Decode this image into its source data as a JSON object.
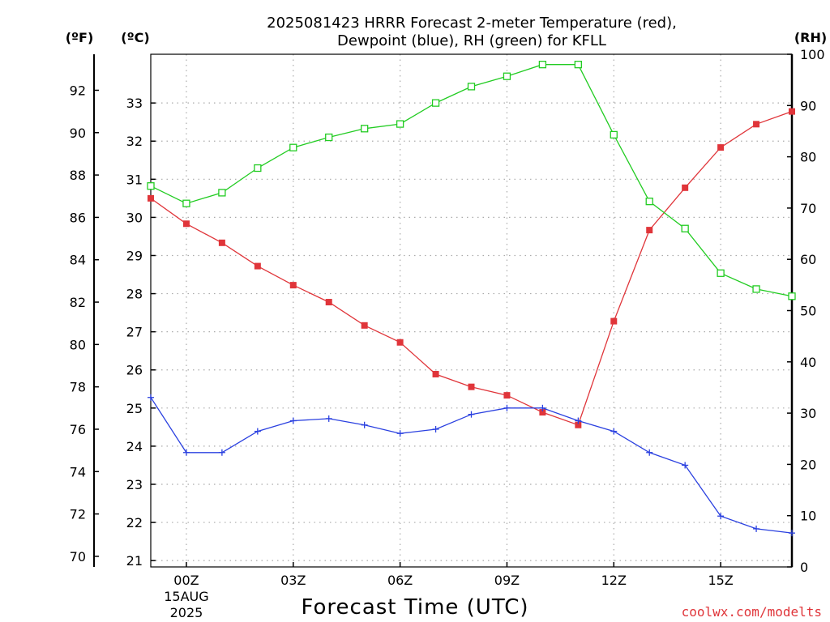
{
  "chart_data": {
    "type": "line",
    "title_line1": "2025081423 HRRR Forecast 2-meter Temperature (red),",
    "title_line2": "Dewpoint (blue), RH (green) for KFLL",
    "left_unit_f": "(ºF)",
    "left_unit_c": "(ºC)",
    "right_unit": "(RH)",
    "xlabel": "Forecast Time (UTC)",
    "credit": "coolwx.com/modelts",
    "x_hours": [
      -1,
      0,
      1,
      2,
      3,
      4,
      5,
      6,
      7,
      8,
      9,
      10,
      11,
      12,
      13,
      14,
      15,
      16,
      17
    ],
    "x_range": [
      -1,
      17
    ],
    "x_ticks": [
      {
        "hour": 0,
        "label": "00Z",
        "sub1": "15AUG",
        "sub2": "2025"
      },
      {
        "hour": 3,
        "label": "03Z"
      },
      {
        "hour": 6,
        "label": "06Z"
      },
      {
        "hour": 9,
        "label": "09Z"
      },
      {
        "hour": 12,
        "label": "12Z"
      },
      {
        "hour": 15,
        "label": "15Z"
      }
    ],
    "y_f_range": [
      69.5,
      93.7
    ],
    "y_f_ticks": [
      70,
      72,
      74,
      76,
      78,
      80,
      82,
      84,
      86,
      88,
      90,
      92
    ],
    "y_c_ticks": [
      21,
      22,
      23,
      24,
      25,
      26,
      27,
      28,
      29,
      30,
      31,
      32,
      33
    ],
    "y_rh_range": [
      0,
      100
    ],
    "y_rh_ticks": [
      0,
      10,
      20,
      30,
      40,
      50,
      60,
      70,
      80,
      90,
      100
    ],
    "series": [
      {
        "name": "Temperature",
        "color": "#e0353a",
        "marker": "filled-square",
        "units": "F",
        "values": [
          86.9,
          85.7,
          84.8,
          83.7,
          82.8,
          82.0,
          80.9,
          80.1,
          78.6,
          78.0,
          77.6,
          76.8,
          76.2,
          81.1,
          85.4,
          87.4,
          89.3,
          90.4,
          91.0
        ]
      },
      {
        "name": "Dewpoint",
        "color": "#2a40e0",
        "marker": "plus",
        "units": "F",
        "values": [
          77.5,
          74.9,
          74.9,
          75.9,
          76.4,
          76.5,
          76.2,
          75.8,
          76.0,
          76.7,
          77.0,
          77.0,
          76.4,
          75.9,
          74.9,
          74.3,
          71.9,
          71.3,
          71.1
        ]
      },
      {
        "name": "RH",
        "color": "#22cc22",
        "marker": "open-square",
        "units": "%",
        "values": [
          74.3,
          70.9,
          73.0,
          77.8,
          81.8,
          83.8,
          85.5,
          86.4,
          90.5,
          93.7,
          95.7,
          98.0,
          98.0,
          84.3,
          71.3,
          66.0,
          57.3,
          54.2,
          52.8
        ]
      }
    ],
    "grid": true
  }
}
